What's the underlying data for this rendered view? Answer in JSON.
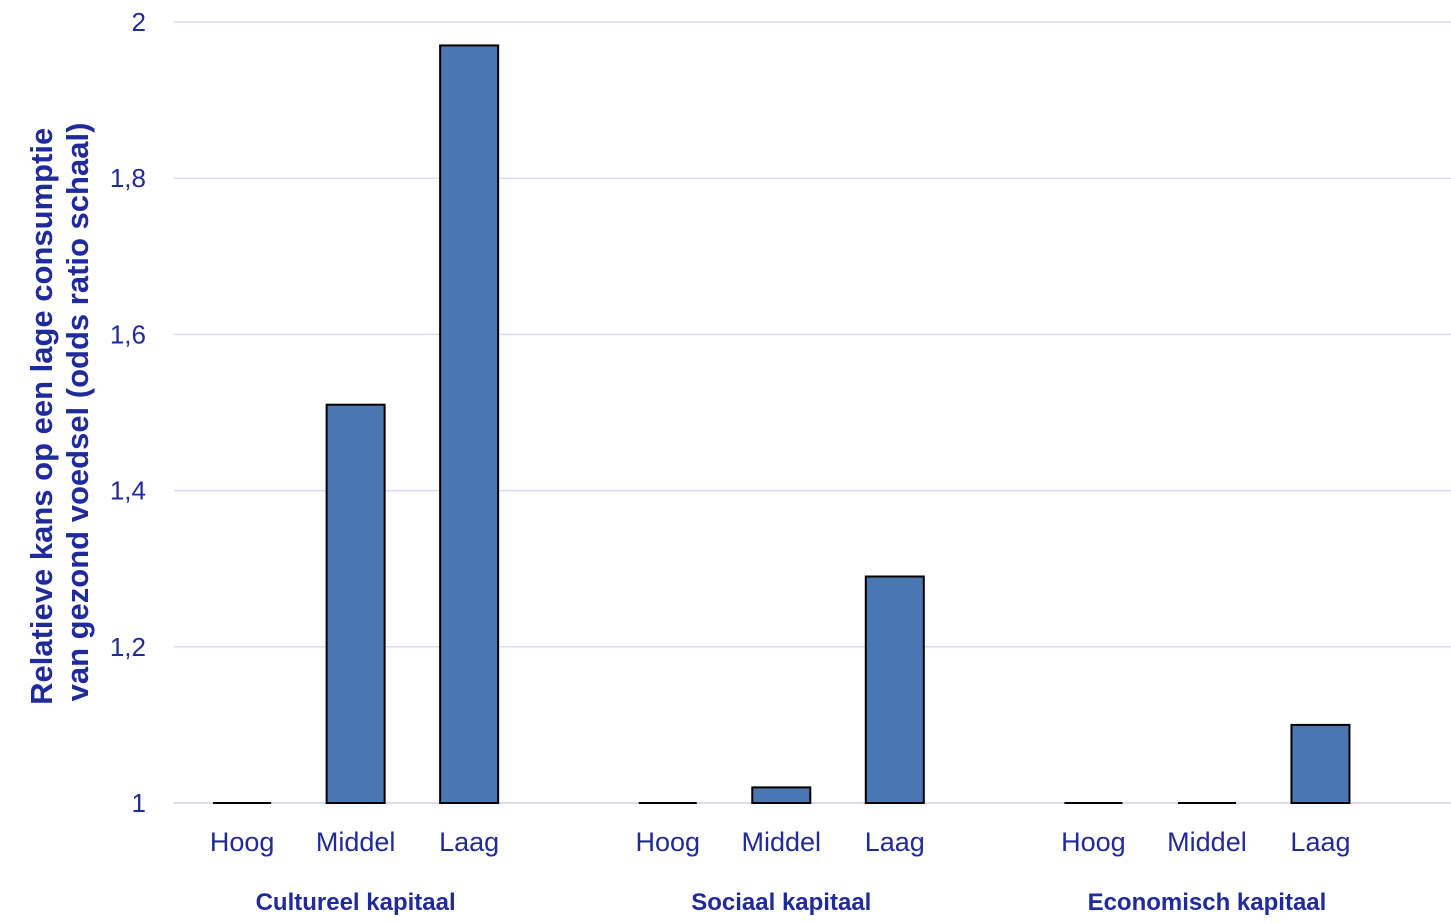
{
  "chart_data": {
    "type": "bar",
    "ylabel_lines": [
      "Relatieve kans op een lage consumptie",
      "van gezond voedsel (odds ratio schaal)"
    ],
    "ylim": [
      1,
      2
    ],
    "yticks": [
      "1",
      "1,2",
      "1,4",
      "1,6",
      "1,8",
      "2"
    ],
    "grid": true,
    "groups": [
      {
        "name": "Cultureel kapitaal",
        "categories": [
          "Hoog",
          "Middel",
          "Laag"
        ],
        "values": [
          1.0,
          1.51,
          1.97
        ]
      },
      {
        "name": "Sociaal kapitaal",
        "categories": [
          "Hoog",
          "Middel",
          "Laag"
        ],
        "values": [
          1.0,
          1.02,
          1.29
        ]
      },
      {
        "name": "Economisch kapitaal",
        "categories": [
          "Hoog",
          "Middel",
          "Laag"
        ],
        "values": [
          1.0,
          1.0,
          1.1
        ]
      }
    ],
    "colors": {
      "bar": "#4a76b2",
      "bar_border": "#000000",
      "grid": "#d9dcf2",
      "text": "#1f2a9c"
    }
  }
}
